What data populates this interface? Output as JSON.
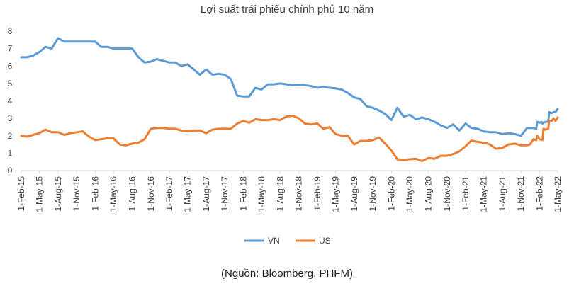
{
  "chart_data": {
    "type": "line",
    "title": "Lợi suất trái phiếu chính phủ 10 năm",
    "source": "(Nguồn: Bloomberg, PHFM)",
    "xlabel": "",
    "ylabel": "",
    "ylim": [
      0,
      8
    ],
    "yticks": [
      "0",
      "1",
      "2",
      "3",
      "4",
      "5",
      "6",
      "7",
      "8"
    ],
    "xlim": [
      "2015-02-01",
      "2022-05-01"
    ],
    "xticks": [
      {
        "date": "2015-02-01",
        "label": "1-Feb-15"
      },
      {
        "date": "2015-05-01",
        "label": "1-May-15"
      },
      {
        "date": "2015-08-01",
        "label": "1-Aug-15"
      },
      {
        "date": "2015-11-01",
        "label": "1-Nov-15"
      },
      {
        "date": "2016-02-01",
        "label": "1-Feb-16"
      },
      {
        "date": "2016-05-01",
        "label": "1-May-16"
      },
      {
        "date": "2016-08-01",
        "label": "1-Aug-16"
      },
      {
        "date": "2016-11-01",
        "label": "1-Nov-16"
      },
      {
        "date": "2017-02-01",
        "label": "1-Feb-17"
      },
      {
        "date": "2017-05-01",
        "label": "1-May-17"
      },
      {
        "date": "2017-08-01",
        "label": "1-Aug-17"
      },
      {
        "date": "2017-11-01",
        "label": "1-Nov-17"
      },
      {
        "date": "2018-02-01",
        "label": "1-Feb-18"
      },
      {
        "date": "2018-05-01",
        "label": "1-May-18"
      },
      {
        "date": "2018-08-01",
        "label": "1-Aug-18"
      },
      {
        "date": "2018-11-01",
        "label": "1-Nov-18"
      },
      {
        "date": "2019-02-01",
        "label": "1-Feb-19"
      },
      {
        "date": "2019-05-01",
        "label": "1-May-19"
      },
      {
        "date": "2019-08-01",
        "label": "1-Aug-19"
      },
      {
        "date": "2019-11-01",
        "label": "1-Nov-19"
      },
      {
        "date": "2020-02-01",
        "label": "1-Feb-20"
      },
      {
        "date": "2020-05-01",
        "label": "1-May-20"
      },
      {
        "date": "2020-08-01",
        "label": "1-Aug-20"
      },
      {
        "date": "2020-11-01",
        "label": "1-Nov-20"
      },
      {
        "date": "2021-02-01",
        "label": "1-Feb-21"
      },
      {
        "date": "2021-05-01",
        "label": "1-May-21"
      },
      {
        "date": "2021-08-01",
        "label": "1-Aug-21"
      },
      {
        "date": "2021-11-01",
        "label": "1-Nov-21"
      },
      {
        "date": "2022-02-01",
        "label": "1-Feb-22"
      },
      {
        "date": "2022-05-01",
        "label": "1-May-22"
      }
    ],
    "grid": false,
    "legend": "bottom-center",
    "series": [
      {
        "name": "VN",
        "color": "#5B9BD5",
        "points": [
          [
            "2015-02-01",
            6.5
          ],
          [
            "2015-03-01",
            6.5
          ],
          [
            "2015-04-01",
            6.6
          ],
          [
            "2015-05-01",
            6.8
          ],
          [
            "2015-06-01",
            7.1
          ],
          [
            "2015-07-01",
            7.0
          ],
          [
            "2015-08-01",
            7.6
          ],
          [
            "2015-09-01",
            7.4
          ],
          [
            "2015-10-01",
            7.4
          ],
          [
            "2015-11-01",
            7.4
          ],
          [
            "2015-12-01",
            7.4
          ],
          [
            "2016-01-01",
            7.4
          ],
          [
            "2016-02-01",
            7.4
          ],
          [
            "2016-03-01",
            7.1
          ],
          [
            "2016-04-01",
            7.1
          ],
          [
            "2016-05-01",
            7.0
          ],
          [
            "2016-06-01",
            7.0
          ],
          [
            "2016-07-01",
            7.0
          ],
          [
            "2016-08-01",
            7.0
          ],
          [
            "2016-09-01",
            6.5
          ],
          [
            "2016-10-01",
            6.2
          ],
          [
            "2016-11-01",
            6.25
          ],
          [
            "2016-12-01",
            6.4
          ],
          [
            "2017-01-01",
            6.3
          ],
          [
            "2017-02-01",
            6.2
          ],
          [
            "2017-03-01",
            6.2
          ],
          [
            "2017-04-01",
            6.0
          ],
          [
            "2017-05-01",
            6.1
          ],
          [
            "2017-06-01",
            5.8
          ],
          [
            "2017-07-01",
            5.5
          ],
          [
            "2017-08-01",
            5.8
          ],
          [
            "2017-09-01",
            5.5
          ],
          [
            "2017-10-01",
            5.55
          ],
          [
            "2017-11-01",
            5.5
          ],
          [
            "2017-12-01",
            5.25
          ],
          [
            "2018-01-01",
            4.3
          ],
          [
            "2018-02-01",
            4.25
          ],
          [
            "2018-03-01",
            4.25
          ],
          [
            "2018-04-01",
            4.75
          ],
          [
            "2018-05-01",
            4.65
          ],
          [
            "2018-06-01",
            4.95
          ],
          [
            "2018-07-01",
            4.95
          ],
          [
            "2018-08-01",
            5.0
          ],
          [
            "2018-09-01",
            4.95
          ],
          [
            "2018-10-01",
            4.9
          ],
          [
            "2018-11-01",
            4.9
          ],
          [
            "2018-12-01",
            4.9
          ],
          [
            "2019-01-01",
            4.85
          ],
          [
            "2019-02-01",
            4.75
          ],
          [
            "2019-03-01",
            4.8
          ],
          [
            "2019-04-01",
            4.75
          ],
          [
            "2019-05-01",
            4.72
          ],
          [
            "2019-06-01",
            4.65
          ],
          [
            "2019-07-01",
            4.45
          ],
          [
            "2019-08-01",
            4.2
          ],
          [
            "2019-09-01",
            4.1
          ],
          [
            "2019-10-01",
            3.7
          ],
          [
            "2019-11-01",
            3.6
          ],
          [
            "2019-12-01",
            3.45
          ],
          [
            "2020-01-01",
            3.25
          ],
          [
            "2020-02-01",
            2.9
          ],
          [
            "2020-03-01",
            3.6
          ],
          [
            "2020-04-01",
            3.1
          ],
          [
            "2020-05-01",
            3.2
          ],
          [
            "2020-06-01",
            2.95
          ],
          [
            "2020-07-01",
            3.05
          ],
          [
            "2020-08-01",
            2.95
          ],
          [
            "2020-09-01",
            2.8
          ],
          [
            "2020-10-01",
            2.6
          ],
          [
            "2020-11-01",
            2.45
          ],
          [
            "2020-12-01",
            2.65
          ],
          [
            "2021-01-01",
            2.3
          ],
          [
            "2021-02-01",
            2.7
          ],
          [
            "2021-03-01",
            2.45
          ],
          [
            "2021-04-01",
            2.4
          ],
          [
            "2021-05-01",
            2.25
          ],
          [
            "2021-06-01",
            2.2
          ],
          [
            "2021-07-01",
            2.2
          ],
          [
            "2021-08-01",
            2.1
          ],
          [
            "2021-09-01",
            2.15
          ],
          [
            "2021-10-01",
            2.1
          ],
          [
            "2021-11-01",
            2.0
          ],
          [
            "2021-12-01",
            2.45
          ],
          [
            "2022-01-01",
            2.45
          ],
          [
            "2022-01-15",
            2.4
          ],
          [
            "2022-01-20",
            2.8
          ],
          [
            "2022-02-01",
            2.75
          ],
          [
            "2022-02-10",
            2.8
          ],
          [
            "2022-02-15",
            2.7
          ],
          [
            "2022-02-20",
            2.75
          ],
          [
            "2022-03-01",
            2.8
          ],
          [
            "2022-03-15",
            2.8
          ],
          [
            "2022-03-20",
            3.35
          ],
          [
            "2022-04-01",
            3.3
          ],
          [
            "2022-04-10",
            3.35
          ],
          [
            "2022-04-20",
            3.35
          ],
          [
            "2022-05-01",
            3.55
          ]
        ]
      },
      {
        "name": "US",
        "color": "#ED7D31",
        "points": [
          [
            "2015-02-01",
            2.0
          ],
          [
            "2015-03-01",
            1.95
          ],
          [
            "2015-04-01",
            2.05
          ],
          [
            "2015-05-01",
            2.15
          ],
          [
            "2015-06-01",
            2.35
          ],
          [
            "2015-07-01",
            2.2
          ],
          [
            "2015-08-01",
            2.2
          ],
          [
            "2015-09-01",
            2.05
          ],
          [
            "2015-10-01",
            2.15
          ],
          [
            "2015-11-01",
            2.2
          ],
          [
            "2015-12-01",
            2.25
          ],
          [
            "2016-01-01",
            1.95
          ],
          [
            "2016-02-01",
            1.75
          ],
          [
            "2016-03-01",
            1.8
          ],
          [
            "2016-04-01",
            1.85
          ],
          [
            "2016-05-01",
            1.85
          ],
          [
            "2016-06-01",
            1.5
          ],
          [
            "2016-07-01",
            1.45
          ],
          [
            "2016-08-01",
            1.55
          ],
          [
            "2016-09-01",
            1.6
          ],
          [
            "2016-10-01",
            1.8
          ],
          [
            "2016-11-01",
            2.4
          ],
          [
            "2016-12-01",
            2.45
          ],
          [
            "2017-01-01",
            2.45
          ],
          [
            "2017-02-01",
            2.4
          ],
          [
            "2017-03-01",
            2.4
          ],
          [
            "2017-04-01",
            2.3
          ],
          [
            "2017-05-01",
            2.25
          ],
          [
            "2017-06-01",
            2.3
          ],
          [
            "2017-07-01",
            2.3
          ],
          [
            "2017-08-01",
            2.15
          ],
          [
            "2017-09-01",
            2.35
          ],
          [
            "2017-10-01",
            2.4
          ],
          [
            "2017-11-01",
            2.4
          ],
          [
            "2017-12-01",
            2.4
          ],
          [
            "2018-01-01",
            2.7
          ],
          [
            "2018-02-01",
            2.85
          ],
          [
            "2018-03-01",
            2.75
          ],
          [
            "2018-04-01",
            2.95
          ],
          [
            "2018-05-01",
            2.9
          ],
          [
            "2018-06-01",
            2.9
          ],
          [
            "2018-07-01",
            2.95
          ],
          [
            "2018-08-01",
            2.9
          ],
          [
            "2018-09-01",
            3.1
          ],
          [
            "2018-10-01",
            3.15
          ],
          [
            "2018-11-01",
            3.0
          ],
          [
            "2018-12-01",
            2.7
          ],
          [
            "2019-01-01",
            2.65
          ],
          [
            "2019-02-01",
            2.7
          ],
          [
            "2019-03-01",
            2.4
          ],
          [
            "2019-04-01",
            2.5
          ],
          [
            "2019-05-01",
            2.1
          ],
          [
            "2019-06-01",
            2.0
          ],
          [
            "2019-07-01",
            2.0
          ],
          [
            "2019-08-01",
            1.5
          ],
          [
            "2019-09-01",
            1.7
          ],
          [
            "2019-10-01",
            1.7
          ],
          [
            "2019-11-01",
            1.75
          ],
          [
            "2019-12-01",
            1.9
          ],
          [
            "2020-01-01",
            1.55
          ],
          [
            "2020-02-01",
            1.15
          ],
          [
            "2020-03-01",
            0.65
          ],
          [
            "2020-04-01",
            0.62
          ],
          [
            "2020-05-01",
            0.65
          ],
          [
            "2020-06-01",
            0.68
          ],
          [
            "2020-07-01",
            0.55
          ],
          [
            "2020-08-01",
            0.72
          ],
          [
            "2020-09-01",
            0.68
          ],
          [
            "2020-10-01",
            0.85
          ],
          [
            "2020-11-01",
            0.85
          ],
          [
            "2020-12-01",
            0.95
          ],
          [
            "2021-01-01",
            1.1
          ],
          [
            "2021-02-01",
            1.4
          ],
          [
            "2021-03-01",
            1.72
          ],
          [
            "2021-04-01",
            1.65
          ],
          [
            "2021-05-01",
            1.6
          ],
          [
            "2021-06-01",
            1.5
          ],
          [
            "2021-07-01",
            1.25
          ],
          [
            "2021-08-01",
            1.3
          ],
          [
            "2021-09-01",
            1.5
          ],
          [
            "2021-10-01",
            1.55
          ],
          [
            "2021-11-01",
            1.45
          ],
          [
            "2021-12-01",
            1.45
          ],
          [
            "2021-12-15",
            1.5
          ],
          [
            "2022-01-01",
            1.8
          ],
          [
            "2022-01-15",
            1.75
          ],
          [
            "2022-01-20",
            2.0
          ],
          [
            "2022-02-01",
            1.8
          ],
          [
            "2022-02-15",
            1.75
          ],
          [
            "2022-02-20",
            2.4
          ],
          [
            "2022-03-01",
            2.35
          ],
          [
            "2022-03-15",
            2.4
          ],
          [
            "2022-03-20",
            2.85
          ],
          [
            "2022-04-01",
            2.85
          ],
          [
            "2022-04-10",
            3.0
          ],
          [
            "2022-04-20",
            2.85
          ],
          [
            "2022-05-01",
            3.05
          ]
        ]
      }
    ]
  }
}
